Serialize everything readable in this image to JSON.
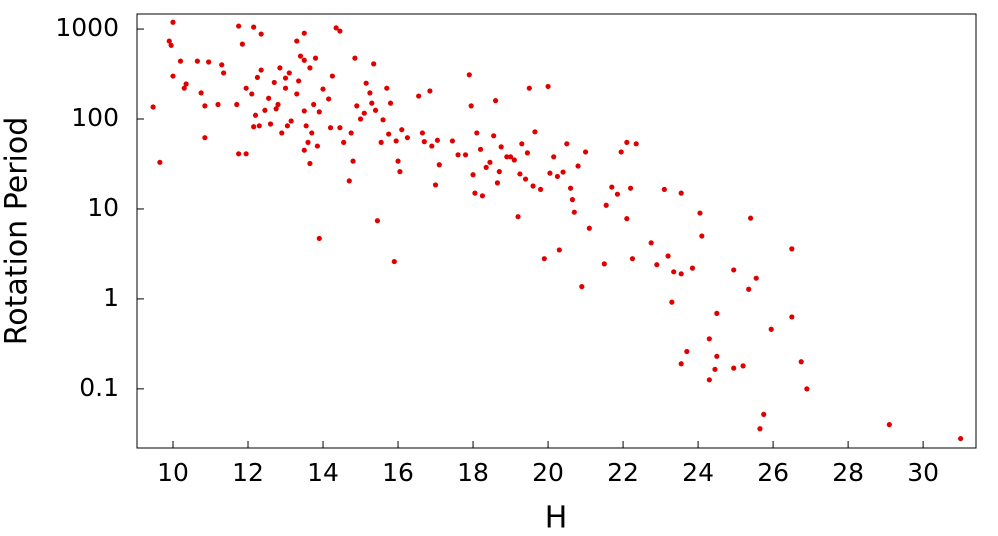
{
  "chart_data": {
    "type": "scatter",
    "x_label": "H",
    "y_label": "Rotation Period",
    "xlim": [
      9.04,
      31.41
    ],
    "ylim": [
      0.022,
      1470
    ],
    "y_log": true,
    "xticks": [
      10,
      12,
      14,
      16,
      18,
      20,
      22,
      24,
      26,
      28,
      30
    ],
    "yticks": [
      1000,
      100,
      10,
      1,
      0.1
    ],
    "color": "#e00000",
    "x": [
      9.47,
      9.65,
      9.9,
      10.0,
      9.95,
      10.0,
      10.2,
      10.35,
      10.3,
      10.65,
      10.75,
      10.95,
      10.85,
      10.85,
      11.2,
      11.35,
      11.3,
      11.75,
      11.85,
      12.15,
      12.35,
      11.75,
      11.95,
      11.7,
      11.95,
      12.1,
      12.2,
      12.25,
      12.35,
      12.45,
      12.55,
      12.15,
      12.3,
      12.6,
      12.7,
      12.85,
      12.75,
      12.9,
      13.05,
      12.8,
      13.15,
      13.0,
      13.1,
      13.0,
      13.3,
      13.35,
      13.3,
      13.5,
      13.4,
      13.5,
      13.65,
      13.5,
      13.55,
      13.6,
      13.5,
      13.65,
      13.7,
      13.75,
      13.9,
      13.8,
      14.0,
      13.85,
      13.9,
      14.15,
      14.25,
      14.35,
      14.45,
      14.2,
      14.45,
      14.55,
      14.7,
      14.75,
      14.8,
      14.85,
      14.9,
      15.0,
      15.1,
      15.15,
      15.25,
      15.3,
      15.35,
      15.4,
      15.45,
      15.55,
      15.6,
      15.7,
      15.75,
      15.8,
      15.9,
      15.95,
      16.0,
      16.05,
      16.1,
      16.25,
      16.55,
      16.65,
      16.7,
      16.85,
      16.9,
      17.0,
      17.05,
      17.1,
      17.45,
      17.6,
      17.8,
      17.9,
      17.95,
      18.0,
      18.05,
      18.1,
      18.2,
      18.25,
      18.35,
      18.45,
      18.55,
      18.6,
      18.65,
      18.7,
      18.75,
      18.9,
      19.0,
      19.1,
      19.2,
      19.25,
      19.3,
      19.4,
      19.45,
      19.5,
      19.6,
      19.65,
      19.8,
      19.9,
      20.0,
      20.05,
      20.15,
      20.25,
      20.3,
      20.4,
      20.5,
      20.6,
      20.65,
      20.7,
      20.8,
      20.9,
      21.0,
      21.1,
      21.5,
      21.55,
      21.7,
      21.85,
      21.95,
      22.1,
      22.2,
      22.1,
      22.25,
      22.35,
      22.75,
      22.9,
      23.1,
      23.2,
      23.3,
      23.35,
      23.55,
      23.55,
      23.7,
      23.55,
      23.85,
      24.05,
      24.1,
      24.3,
      24.3,
      24.5,
      24.5,
      24.45,
      24.95,
      24.95,
      25.2,
      25.35,
      25.4,
      25.55,
      25.75,
      25.65,
      25.95,
      26.5,
      26.5,
      26.75,
      26.9,
      29.1,
      31.0
    ],
    "values": [
      136,
      33,
      735,
      1190,
      660,
      300,
      440,
      245,
      220,
      440,
      195,
      430,
      62,
      140,
      145,
      325,
      400,
      1080,
      680,
      1050,
      880,
      41,
      41,
      145,
      220,
      190,
      110,
      290,
      350,
      125,
      170,
      82,
      84,
      88,
      255,
      370,
      130,
      70,
      84,
      145,
      95,
      285,
      325,
      220,
      190,
      265,
      735,
      900,
      500,
      450,
      370,
      123,
      84,
      55,
      45,
      32,
      70,
      145,
      120,
      475,
      215,
      50,
      4.7,
      167,
      300,
      1030,
      950,
      80,
      80,
      55,
      20.5,
      70,
      34,
      475,
      140,
      100,
      116,
      250,
      195,
      150,
      410,
      125,
      7.4,
      55,
      98,
      220,
      68,
      150,
      2.6,
      57,
      34,
      26,
      76,
      62,
      180,
      70,
      56,
      205,
      50,
      18.5,
      58,
      31,
      57,
      40,
      40,
      310,
      140,
      24,
      15,
      70,
      46,
      14,
      29,
      33,
      65,
      160,
      19.5,
      26,
      49,
      38,
      38,
      35,
      8.2,
      24.5,
      53,
      21.5,
      42,
      220,
      18,
      72,
      16.5,
      2.8,
      230,
      25,
      38,
      23,
      3.5,
      25.7,
      53,
      17,
      12.7,
      9.2,
      30,
      1.37,
      43,
      6.1,
      2.45,
      11,
      17.5,
      14.6,
      43,
      55,
      17,
      7.8,
      2.8,
      53,
      4.2,
      2.4,
      16.5,
      3.0,
      0.92,
      2,
      1.9,
      15,
      0.26,
      0.19,
      2.2,
      9.0,
      5.0,
      0.126,
      0.36,
      0.69,
      0.23,
      0.165,
      0.17,
      2.1,
      0.18,
      1.28,
      7.9,
      1.7,
      0.052,
      0.036,
      0.46,
      3.6,
      0.63,
      0.2,
      0.1,
      0.04,
      0.028
    ]
  }
}
